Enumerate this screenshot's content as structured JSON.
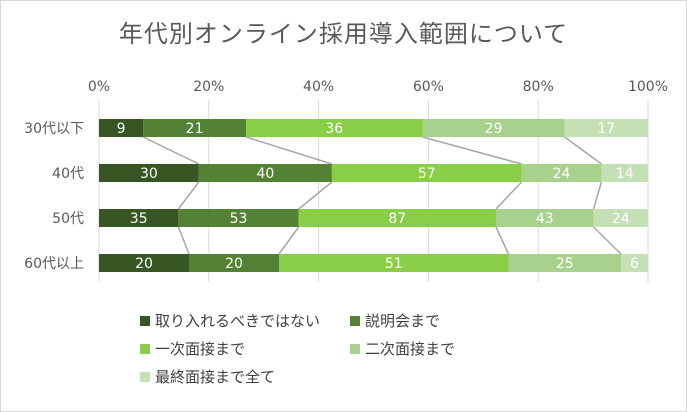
{
  "chart_data": {
    "type": "bar",
    "orientation": "horizontal",
    "stacked": "percent",
    "title": "年代別オンライン採用導入範囲について",
    "categories": [
      "30代以下",
      "40代",
      "50代",
      "60代以上"
    ],
    "x_ticks": [
      "0%",
      "20%",
      "40%",
      "60%",
      "80%",
      "100%"
    ],
    "xlim": [
      0,
      100
    ],
    "grid": true,
    "legend_position": "bottom",
    "series": [
      {
        "name": "取り入れるべきではない",
        "color": "#375623",
        "values": [
          9,
          30,
          35,
          20
        ]
      },
      {
        "name": "説明会まで",
        "color": "#548235",
        "values": [
          21,
          40,
          53,
          20
        ]
      },
      {
        "name": "一次面接まで",
        "color": "#8ace48",
        "values": [
          36,
          57,
          87,
          51
        ]
      },
      {
        "name": "二次面接まで",
        "color": "#a9d18e",
        "values": [
          29,
          24,
          43,
          25
        ]
      },
      {
        "name": "最終面接まで全て",
        "color": "#c5e0b4",
        "values": [
          17,
          14,
          24,
          6
        ]
      }
    ]
  }
}
